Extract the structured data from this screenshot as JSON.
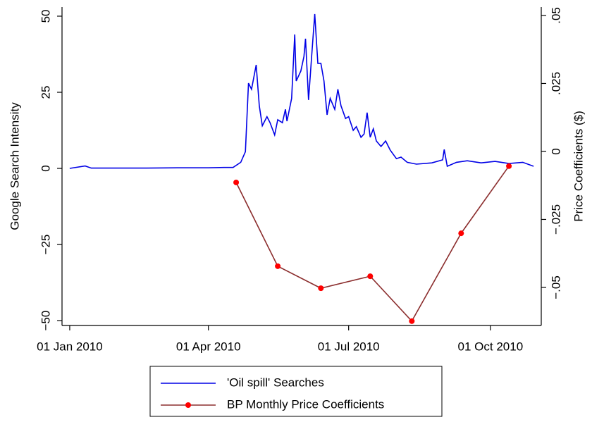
{
  "chart_data": {
    "type": "line",
    "y_label": "Google Search Intensity",
    "y2_label": "Price Coefficients ($)",
    "xlim": [
      "2009-12-27",
      "2010-11-03"
    ],
    "xticks": [
      {
        "value": "2010-01-01",
        "label": "01 Jan 2010"
      },
      {
        "value": "2010-04-01",
        "label": "01 Apr 2010"
      },
      {
        "value": "2010-07-01",
        "label": "01 Jul 2010"
      },
      {
        "value": "2010-10-01",
        "label": "01 Oct 2010"
      }
    ],
    "ylim": [
      -51.6,
      53
    ],
    "yticks": [
      {
        "value": -50,
        "label": "−50"
      },
      {
        "value": -25,
        "label": "−25"
      },
      0,
      25,
      50
    ],
    "y2lim": [
      -0.064,
      0.0531
    ],
    "y2ticks": [
      {
        "value": -0.05,
        "label": "−.05"
      },
      {
        "value": -0.025,
        "label": "−.025"
      },
      0,
      {
        "value": 0.025,
        "label": ".025"
      },
      {
        "value": 0.05,
        "label": ".05"
      }
    ],
    "legend": "bottom",
    "series": [
      {
        "name": "'Oil spill' Searches",
        "color": "#0000e6",
        "axis": "y",
        "x": [
          "2010-01-01",
          "2010-01-11",
          "2010-01-15",
          "2010-01-31",
          "2010-02-20",
          "2010-03-12",
          "2010-04-01",
          "2010-04-11",
          "2010-04-17",
          "2010-04-22",
          "2010-04-25",
          "2010-04-27",
          "2010-04-29",
          "2010-05-02",
          "2010-05-04",
          "2010-05-06",
          "2010-05-09",
          "2010-05-11",
          "2010-05-14",
          "2010-05-16",
          "2010-05-19",
          "2010-05-21",
          "2010-05-22",
          "2010-05-25",
          "2010-05-27",
          "2010-05-28",
          "2010-05-31",
          "2010-06-02",
          "2010-06-03",
          "2010-06-05",
          "2010-06-07",
          "2010-06-09",
          "2010-06-11",
          "2010-06-13",
          "2010-06-15",
          "2010-06-17",
          "2010-06-19",
          "2010-06-22",
          "2010-06-24",
          "2010-06-26",
          "2010-06-29",
          "2010-07-01",
          "2010-07-04",
          "2010-07-06",
          "2010-07-09",
          "2010-07-11",
          "2010-07-13",
          "2010-07-15",
          "2010-07-17",
          "2010-07-19",
          "2010-07-22",
          "2010-07-25",
          "2010-07-28",
          "2010-08-01",
          "2010-08-04",
          "2010-08-08",
          "2010-08-14",
          "2010-08-24",
          "2010-08-31",
          "2010-09-01",
          "2010-09-03",
          "2010-09-09",
          "2010-09-16",
          "2010-09-25",
          "2010-10-04",
          "2010-10-13",
          "2010-10-22",
          "2010-10-29"
        ],
        "values": [
          0,
          0.8,
          0.1,
          0.1,
          0.1,
          0.2,
          0.2,
          0.3,
          0.3,
          2,
          5.5,
          28,
          26,
          34,
          20.6,
          14,
          17,
          15,
          11,
          16,
          15,
          19.4,
          15.5,
          23,
          44,
          28.7,
          32,
          36.8,
          42.6,
          22.5,
          36.8,
          50.7,
          34.5,
          34.5,
          28.7,
          17.6,
          23,
          19.4,
          26,
          20.6,
          16.4,
          17,
          12.5,
          13.7,
          10.2,
          11.3,
          18.3,
          10.2,
          13,
          9,
          7.2,
          9,
          6,
          3.2,
          3.7,
          2,
          1.4,
          1.8,
          2.8,
          6.2,
          0.7,
          2,
          2.5,
          1.8,
          2.3,
          1.6,
          2,
          0.7
        ]
      },
      {
        "name": "BP Monthly Price Coefficients",
        "color": "#8b2d2d",
        "marker_color": "#ff0000",
        "axis": "y2",
        "x": [
          "2010-04-19",
          "2010-05-16",
          "2010-06-13",
          "2010-07-15",
          "2010-08-11",
          "2010-09-12",
          "2010-10-13"
        ],
        "values": [
          -0.0114,
          -0.0422,
          -0.0503,
          -0.0459,
          -0.0624,
          -0.0301,
          -0.0054
        ]
      }
    ]
  }
}
